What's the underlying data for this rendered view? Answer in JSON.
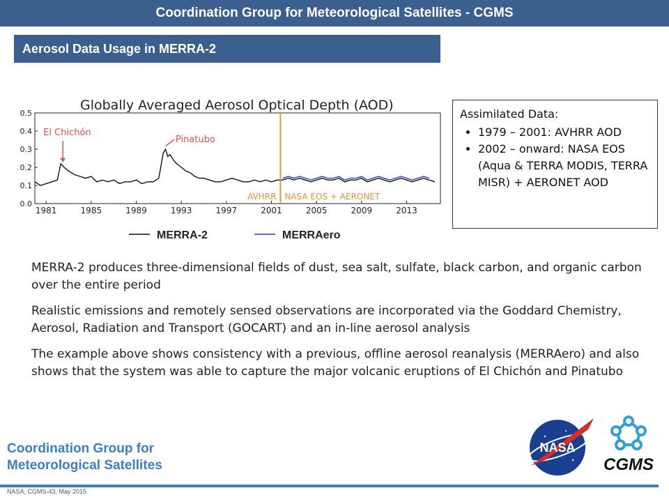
{
  "header": {
    "title": "Coordination Group for Meteorological Satellites - CGMS"
  },
  "section": {
    "title": "Aerosol Data Usage in MERRA-2"
  },
  "chart_data": {
    "type": "line",
    "title": "Globally Averaged Aerosol Optical Depth (AOD)",
    "xlim": [
      1980,
      2016
    ],
    "ylim": [
      0.0,
      0.5
    ],
    "x_ticks": [
      "1981",
      "1985",
      "1989",
      "1993",
      "1997",
      "2001",
      "2005",
      "2009",
      "2013"
    ],
    "y_ticks": [
      "0.0",
      "0.1",
      "0.2",
      "0.3",
      "0.4",
      "0.5"
    ],
    "grid": false,
    "legend_placement": "bottom",
    "annotations": [
      {
        "text": "El Chichón",
        "x": 1982.3,
        "y": 0.22,
        "color": "#d9534f"
      },
      {
        "text": "Pinatubo",
        "x": 1991.5,
        "y": 0.31,
        "color": "#d9534f"
      }
    ],
    "divider": {
      "x": 2001.8,
      "left_label": "AVHRR",
      "right_label": "NASA EOS + AERONET",
      "color": "#e8923a"
    },
    "series": [
      {
        "name": "MERRA-2",
        "color": "#111111",
        "x": [
          1980.0,
          1980.5,
          1981.0,
          1981.5,
          1982.0,
          1982.3,
          1982.6,
          1983.0,
          1983.5,
          1984.0,
          1984.5,
          1985.0,
          1985.5,
          1986.0,
          1986.5,
          1987.0,
          1987.5,
          1988.0,
          1988.5,
          1989.0,
          1989.5,
          1990.0,
          1990.5,
          1991.0,
          1991.4,
          1991.6,
          1991.8,
          1992.0,
          1992.3,
          1992.6,
          1993.0,
          1993.4,
          1993.8,
          1994.2,
          1994.6,
          1995.0,
          1995.5,
          1996.0,
          1996.5,
          1997.0,
          1997.5,
          1998.0,
          1998.5,
          1999.0,
          1999.5,
          2000.0,
          2000.5,
          2001.0,
          2001.5,
          2002.0,
          2002.5,
          2003.0,
          2003.5,
          2004.0,
          2004.5,
          2005.0,
          2005.5,
          2006.0,
          2006.5,
          2007.0,
          2007.5,
          2008.0,
          2008.5,
          2009.0,
          2009.5,
          2010.0,
          2010.5,
          2011.0,
          2011.5,
          2012.0,
          2012.5,
          2013.0,
          2013.5,
          2014.0,
          2014.5,
          2015.0,
          2015.5
        ],
        "y": [
          0.12,
          0.1,
          0.11,
          0.12,
          0.13,
          0.22,
          0.2,
          0.18,
          0.16,
          0.15,
          0.14,
          0.15,
          0.12,
          0.13,
          0.12,
          0.13,
          0.11,
          0.12,
          0.12,
          0.13,
          0.11,
          0.12,
          0.12,
          0.14,
          0.28,
          0.3,
          0.26,
          0.27,
          0.24,
          0.22,
          0.2,
          0.18,
          0.17,
          0.15,
          0.14,
          0.14,
          0.13,
          0.12,
          0.12,
          0.13,
          0.14,
          0.13,
          0.12,
          0.12,
          0.13,
          0.12,
          0.13,
          0.12,
          0.13,
          0.13,
          0.14,
          0.13,
          0.14,
          0.13,
          0.12,
          0.13,
          0.14,
          0.13,
          0.13,
          0.14,
          0.12,
          0.13,
          0.13,
          0.14,
          0.12,
          0.13,
          0.14,
          0.13,
          0.12,
          0.13,
          0.14,
          0.13,
          0.12,
          0.13,
          0.14,
          0.13,
          0.12
        ]
      },
      {
        "name": "MERRAero",
        "color": "#2a3fc4",
        "x": [
          2002.0,
          2002.5,
          2003.0,
          2003.5,
          2004.0,
          2004.5,
          2005.0,
          2005.5,
          2006.0,
          2006.5,
          2007.0,
          2007.5,
          2008.0,
          2008.5,
          2009.0,
          2009.5,
          2010.0,
          2010.5,
          2011.0,
          2011.5,
          2012.0,
          2012.5,
          2013.0,
          2013.5,
          2014.0,
          2014.5,
          2015.0
        ],
        "y": [
          0.14,
          0.15,
          0.14,
          0.15,
          0.14,
          0.13,
          0.14,
          0.15,
          0.14,
          0.14,
          0.15,
          0.13,
          0.14,
          0.14,
          0.15,
          0.13,
          0.14,
          0.15,
          0.14,
          0.13,
          0.14,
          0.15,
          0.14,
          0.13,
          0.14,
          0.15,
          0.14
        ]
      }
    ]
  },
  "assimilated": {
    "title": "Assimilated Data:",
    "items": [
      "1979 – 2001: AVHRR AOD",
      "2002 – onward: NASA EOS (Aqua & TERRA MODIS, TERRA MISR) + AERONET AOD"
    ]
  },
  "body": {
    "paragraphs": [
      "MERRA-2 produces three-dimensional fields of dust, sea salt, sulfate, black carbon, and organic carbon over the entire period",
      "Realistic emissions and remotely sensed observations are incorporated via the Goddard Chemistry, Aerosol, Radiation and Transport (GOCART) and an in-line aerosol analysis",
      "The example above shows consistency with a previous, offline aerosol reanalysis (MERRAero) and also shows that the system was able to capture the major volcanic eruptions of El Chichón and Pinatubo"
    ]
  },
  "footer": {
    "org_line1": "Coordination Group for",
    "org_line2": "Meteorological Satellites",
    "note": "NASA, CGMS-43, May 2015",
    "nasa_text": "NASA",
    "cgms_text": "CGMS"
  },
  "colors": {
    "banner": "#3b5f8f",
    "accent": "#3b7fc4",
    "annotation": "#d9534f",
    "divider": "#e8923a"
  }
}
